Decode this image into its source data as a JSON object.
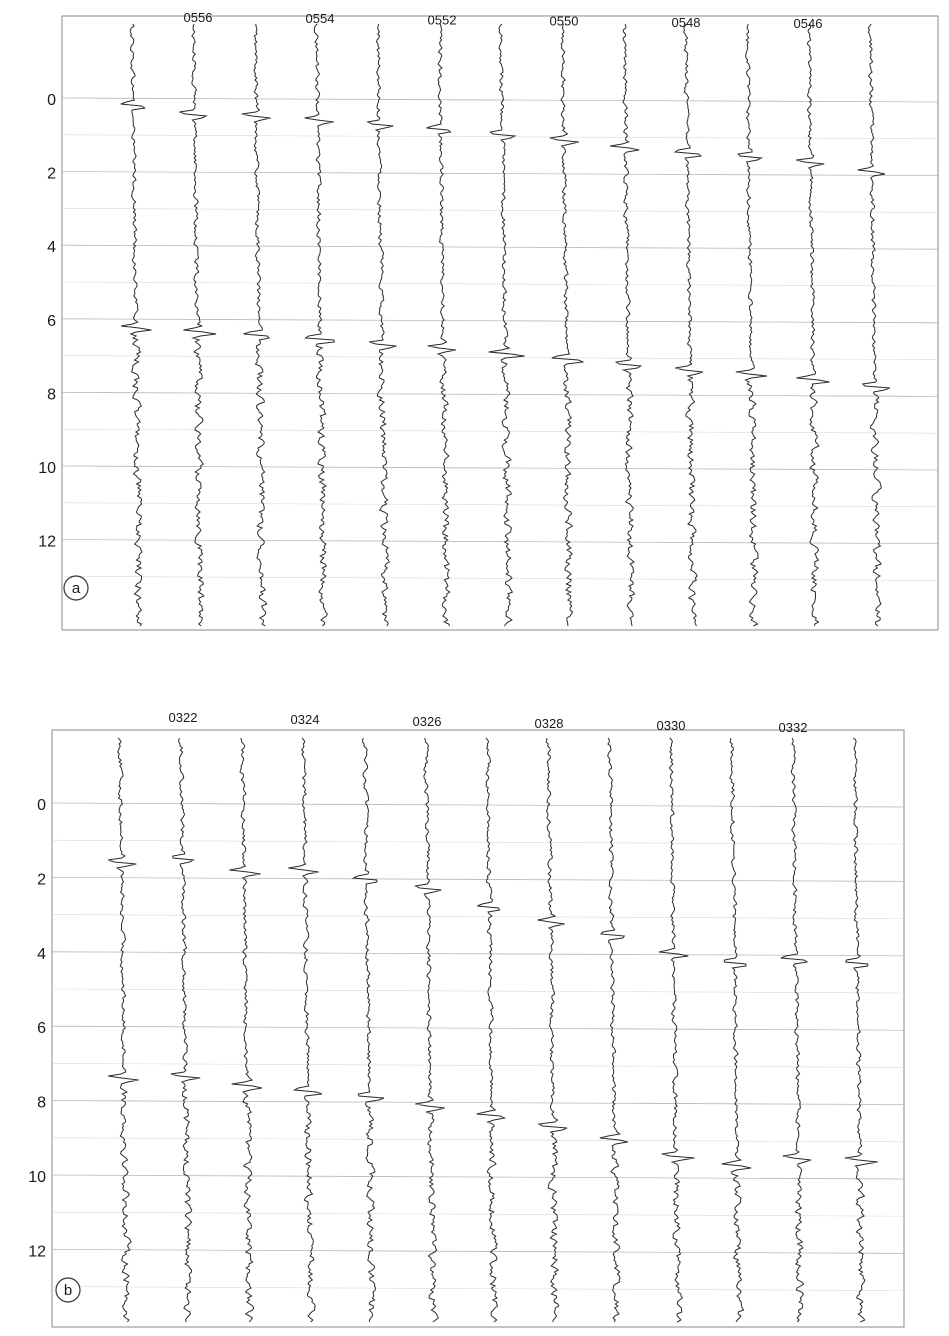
{
  "panels": [
    {
      "id": "a",
      "label": "a",
      "trace_labels": [
        "0556",
        "0554",
        "0552",
        "0550",
        "0548",
        "0546"
      ],
      "y_ticks": [
        "0",
        "2",
        "4",
        "6",
        "8",
        "10",
        "12"
      ],
      "picks_early": [
        0.2,
        0.45,
        0.5,
        0.6,
        0.72,
        0.85,
        1.0,
        1.15,
        1.35,
        1.5,
        1.6,
        1.75,
        2.0
      ],
      "picks_late": [
        6.25,
        6.35,
        6.45,
        6.55,
        6.7,
        6.8,
        6.95,
        7.1,
        7.25,
        7.4,
        7.5,
        7.65,
        7.85
      ]
    },
    {
      "id": "b",
      "label": "b",
      "trace_labels": [
        "0322",
        "0324",
        "0326",
        "0328",
        "0330",
        "0332"
      ],
      "y_ticks": [
        "0",
        "2",
        "4",
        "6",
        "8",
        "10",
        "12"
      ],
      "picks_early": [
        1.6,
        1.5,
        1.85,
        1.8,
        2.05,
        2.3,
        2.8,
        3.2,
        3.55,
        4.05,
        4.3,
        4.2,
        4.3
      ],
      "picks_late": [
        7.4,
        7.35,
        7.6,
        7.75,
        7.9,
        8.15,
        8.4,
        8.7,
        9.05,
        9.5,
        9.75,
        9.55,
        9.6
      ]
    }
  ]
}
